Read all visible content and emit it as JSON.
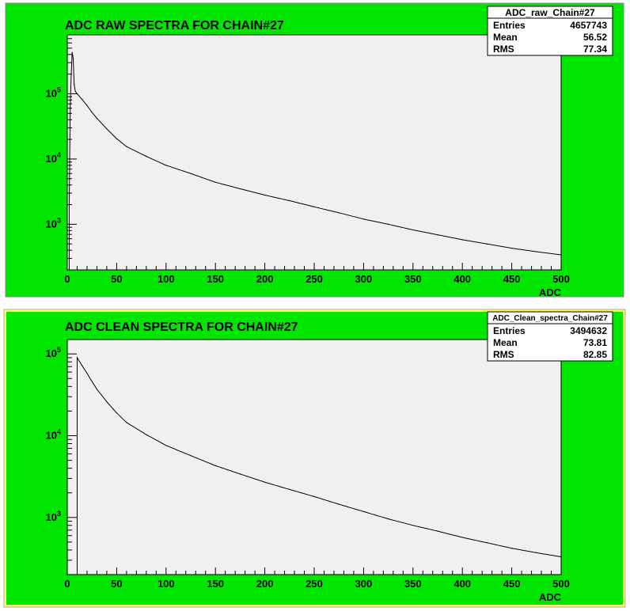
{
  "colors": {
    "pad": "#00e600",
    "frame": "#f0f0f0",
    "line": "#000000"
  },
  "panels": [
    {
      "title": "ADC RAW SPECTRA FOR CHAIN#27",
      "xlabel": "ADC",
      "stats": {
        "name": "ADC_raw_Chain#27",
        "rows": [
          {
            "label": "Entries",
            "value": "4657743"
          },
          {
            "label": "Mean",
            "value": "56.52"
          },
          {
            "label": "RMS",
            "value": "77.34"
          }
        ]
      }
    },
    {
      "title": "ADC CLEAN SPECTRA FOR CHAIN#27",
      "xlabel": "ADC",
      "stats": {
        "name": "ADC_Clean_spectra_Chain#27",
        "rows": [
          {
            "label": "Entries",
            "value": "3494632"
          },
          {
            "label": "Mean",
            "value": "73.81"
          },
          {
            "label": "RMS",
            "value": "82.85"
          }
        ]
      }
    }
  ],
  "chart_data": [
    {
      "type": "line",
      "title": "ADC RAW SPECTRA FOR CHAIN#27",
      "xlabel": "ADC",
      "ylabel": "",
      "xlim": [
        0,
        500
      ],
      "ylim": [
        200,
        800000
      ],
      "yscale": "log",
      "grid": false,
      "xticks": [
        "0",
        "50",
        "100",
        "150",
        "200",
        "250",
        "300",
        "350",
        "400",
        "450",
        "500"
      ],
      "yticks": [
        1000,
        10000,
        100000
      ],
      "series": [
        {
          "x": [
            2,
            3,
            4,
            5,
            6,
            7,
            8,
            10,
            15,
            20,
            25,
            30,
            40,
            50,
            60,
            80,
            100,
            125,
            150,
            175,
            200,
            225,
            250,
            275,
            300,
            325,
            350,
            375,
            400,
            425,
            450,
            475,
            500
          ],
          "values": [
            2000,
            60000,
            200000,
            430000,
            350000,
            140000,
            110000,
            100000,
            82000,
            66000,
            52000,
            42000,
            29000,
            20500,
            15500,
            11000,
            8000,
            6000,
            4400,
            3500,
            2800,
            2300,
            1850,
            1500,
            1200,
            1000,
            820,
            690,
            580,
            500,
            430,
            380,
            340
          ]
        }
      ]
    },
    {
      "type": "line",
      "title": "ADC CLEAN SPECTRA FOR CHAIN#27",
      "xlabel": "ADC",
      "ylabel": "",
      "xlim": [
        0,
        500
      ],
      "ylim": [
        200,
        150000
      ],
      "yscale": "log",
      "grid": false,
      "xticks": [
        "0",
        "50",
        "100",
        "150",
        "200",
        "250",
        "300",
        "350",
        "400",
        "450",
        "500"
      ],
      "yticks": [
        1000,
        10000,
        100000
      ],
      "series": [
        {
          "x": [
            10,
            11,
            15,
            20,
            25,
            30,
            40,
            50,
            60,
            80,
            100,
            125,
            150,
            175,
            200,
            225,
            250,
            275,
            300,
            325,
            350,
            375,
            400,
            425,
            450,
            475,
            500
          ],
          "values": [
            90000,
            86000,
            72000,
            58000,
            46000,
            37000,
            26000,
            19000,
            14500,
            10300,
            7600,
            5700,
            4300,
            3400,
            2700,
            2200,
            1800,
            1450,
            1180,
            960,
            800,
            680,
            570,
            490,
            420,
            370,
            330
          ]
        }
      ]
    }
  ]
}
